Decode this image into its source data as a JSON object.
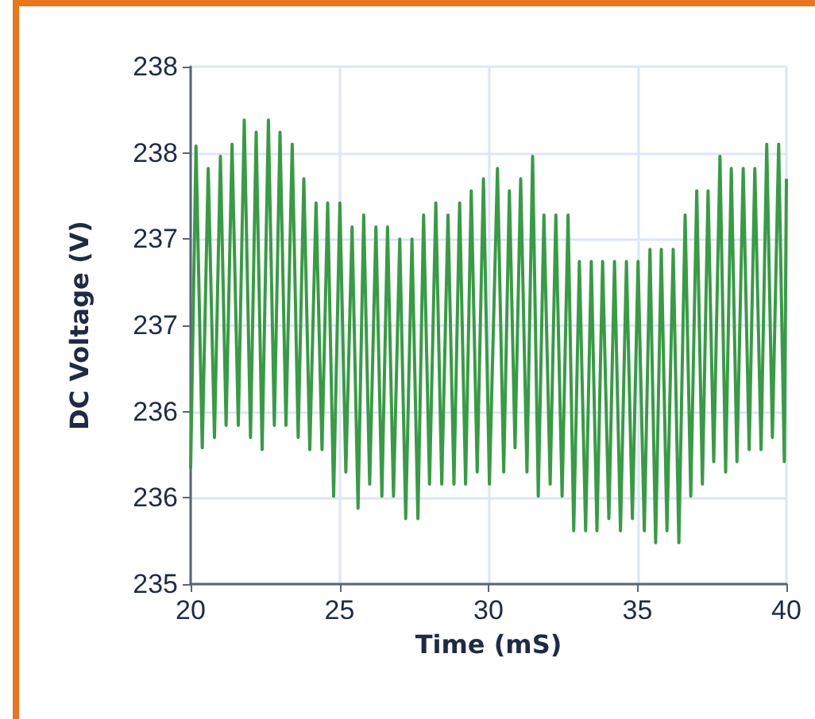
{
  "chart_data": {
    "type": "line",
    "xlabel": "Time (mS)",
    "ylabel": "DC Voltage (V)",
    "xlim": [
      20,
      40
    ],
    "xticks": [
      20,
      25,
      30,
      35,
      40
    ],
    "ylim": [
      235,
      238
    ],
    "yticks": [
      235,
      {
        "value": 235.5,
        "label": "236"
      },
      236,
      {
        "value": 236.5,
        "label": "237"
      },
      237,
      {
        "value": 237.5,
        "label": "238"
      },
      238
    ],
    "grid": true,
    "series": [
      {
        "color": "#3a9a47",
        "x": [
          20.0,
          20.18,
          20.39,
          20.59,
          20.8,
          21.0,
          21.19,
          21.39,
          21.6,
          21.8,
          22.01,
          22.2,
          22.4,
          22.61,
          22.81,
          23.0,
          23.2,
          23.41,
          23.61,
          23.8,
          24.0,
          24.21,
          24.41,
          24.6,
          24.8,
          25.01,
          25.21,
          25.42,
          25.62,
          25.81,
          26.01,
          26.22,
          26.42,
          26.61,
          26.81,
          27.02,
          27.22,
          27.43,
          27.63,
          27.82,
          28.02,
          28.23,
          28.43,
          28.64,
          28.84,
          29.03,
          29.23,
          29.42,
          29.62,
          29.83,
          30.03,
          30.3,
          30.51,
          30.7,
          30.89,
          31.08,
          31.29,
          31.48,
          31.67,
          31.86,
          32.07,
          32.26,
          32.47,
          32.67,
          32.86,
          33.05,
          33.26,
          33.45,
          33.64,
          33.83,
          34.04,
          34.23,
          34.43,
          34.63,
          34.83,
          35.02,
          35.23,
          35.42,
          35.61,
          35.8,
          35.99,
          36.2,
          36.39,
          36.6,
          36.79,
          36.99,
          37.18,
          37.37,
          37.56,
          37.77,
          37.96,
          38.15,
          38.34,
          38.55,
          38.75,
          38.94,
          39.15,
          39.34,
          39.53,
          39.74,
          39.93,
          40.0
        ],
        "values": [
          235.67,
          237.54,
          235.79,
          237.41,
          235.85,
          237.48,
          235.92,
          237.55,
          235.92,
          237.69,
          235.85,
          237.62,
          235.78,
          237.69,
          235.92,
          237.62,
          235.92,
          237.55,
          235.85,
          237.35,
          235.78,
          237.21,
          235.78,
          237.21,
          235.51,
          237.21,
          235.65,
          237.07,
          235.44,
          237.14,
          235.58,
          237.07,
          235.51,
          237.07,
          235.51,
          237.0,
          235.38,
          237.0,
          235.38,
          237.14,
          235.58,
          237.21,
          235.58,
          237.14,
          235.58,
          237.21,
          235.58,
          237.28,
          235.65,
          237.35,
          235.58,
          237.41,
          235.65,
          237.28,
          235.79,
          237.35,
          235.65,
          237.48,
          235.51,
          237.14,
          235.58,
          237.14,
          235.51,
          237.14,
          235.31,
          236.87,
          235.31,
          236.87,
          235.31,
          236.87,
          235.38,
          236.87,
          235.31,
          236.87,
          235.38,
          236.87,
          235.31,
          236.94,
          235.24,
          236.94,
          235.31,
          236.94,
          235.24,
          237.14,
          235.51,
          237.28,
          235.58,
          237.28,
          235.71,
          237.48,
          235.65,
          237.41,
          235.71,
          237.41,
          235.78,
          237.41,
          235.78,
          237.55,
          235.85,
          237.55,
          235.71,
          237.35
        ]
      }
    ]
  }
}
